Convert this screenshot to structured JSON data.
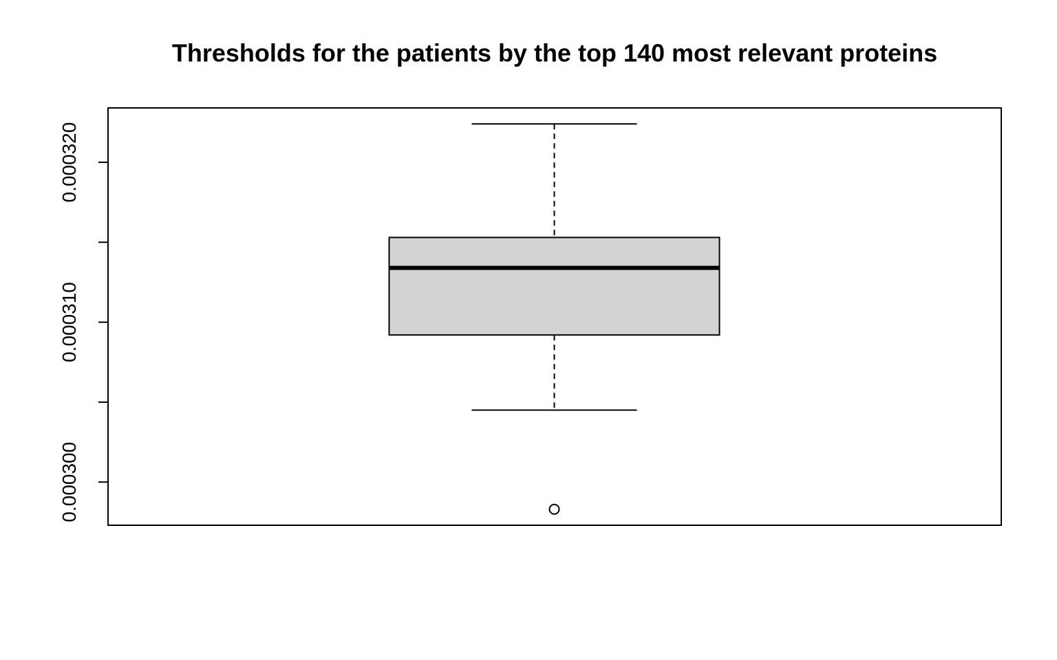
{
  "chart_data": {
    "type": "box",
    "title": "Thresholds for the patients by the top 140 most relevant proteins",
    "series": [
      {
        "whisker_low": 0.0003045,
        "q1": 0.0003092,
        "median": 0.0003134,
        "q3": 0.0003153,
        "whisker_high": 0.0003224,
        "outliers": [
          0.0002983
        ],
        "color": "#d3d3d3"
      }
    ],
    "ylim": [
      0.0002973,
      0.0003234
    ],
    "yticks": [
      {
        "value": 0.0003,
        "label": "0.000300"
      },
      {
        "value": 0.00031,
        "label": "0.000310"
      },
      {
        "value": 0.00032,
        "label": "0.000320"
      }
    ],
    "yminor_ticks": [
      0.000305,
      0.000315
    ]
  }
}
